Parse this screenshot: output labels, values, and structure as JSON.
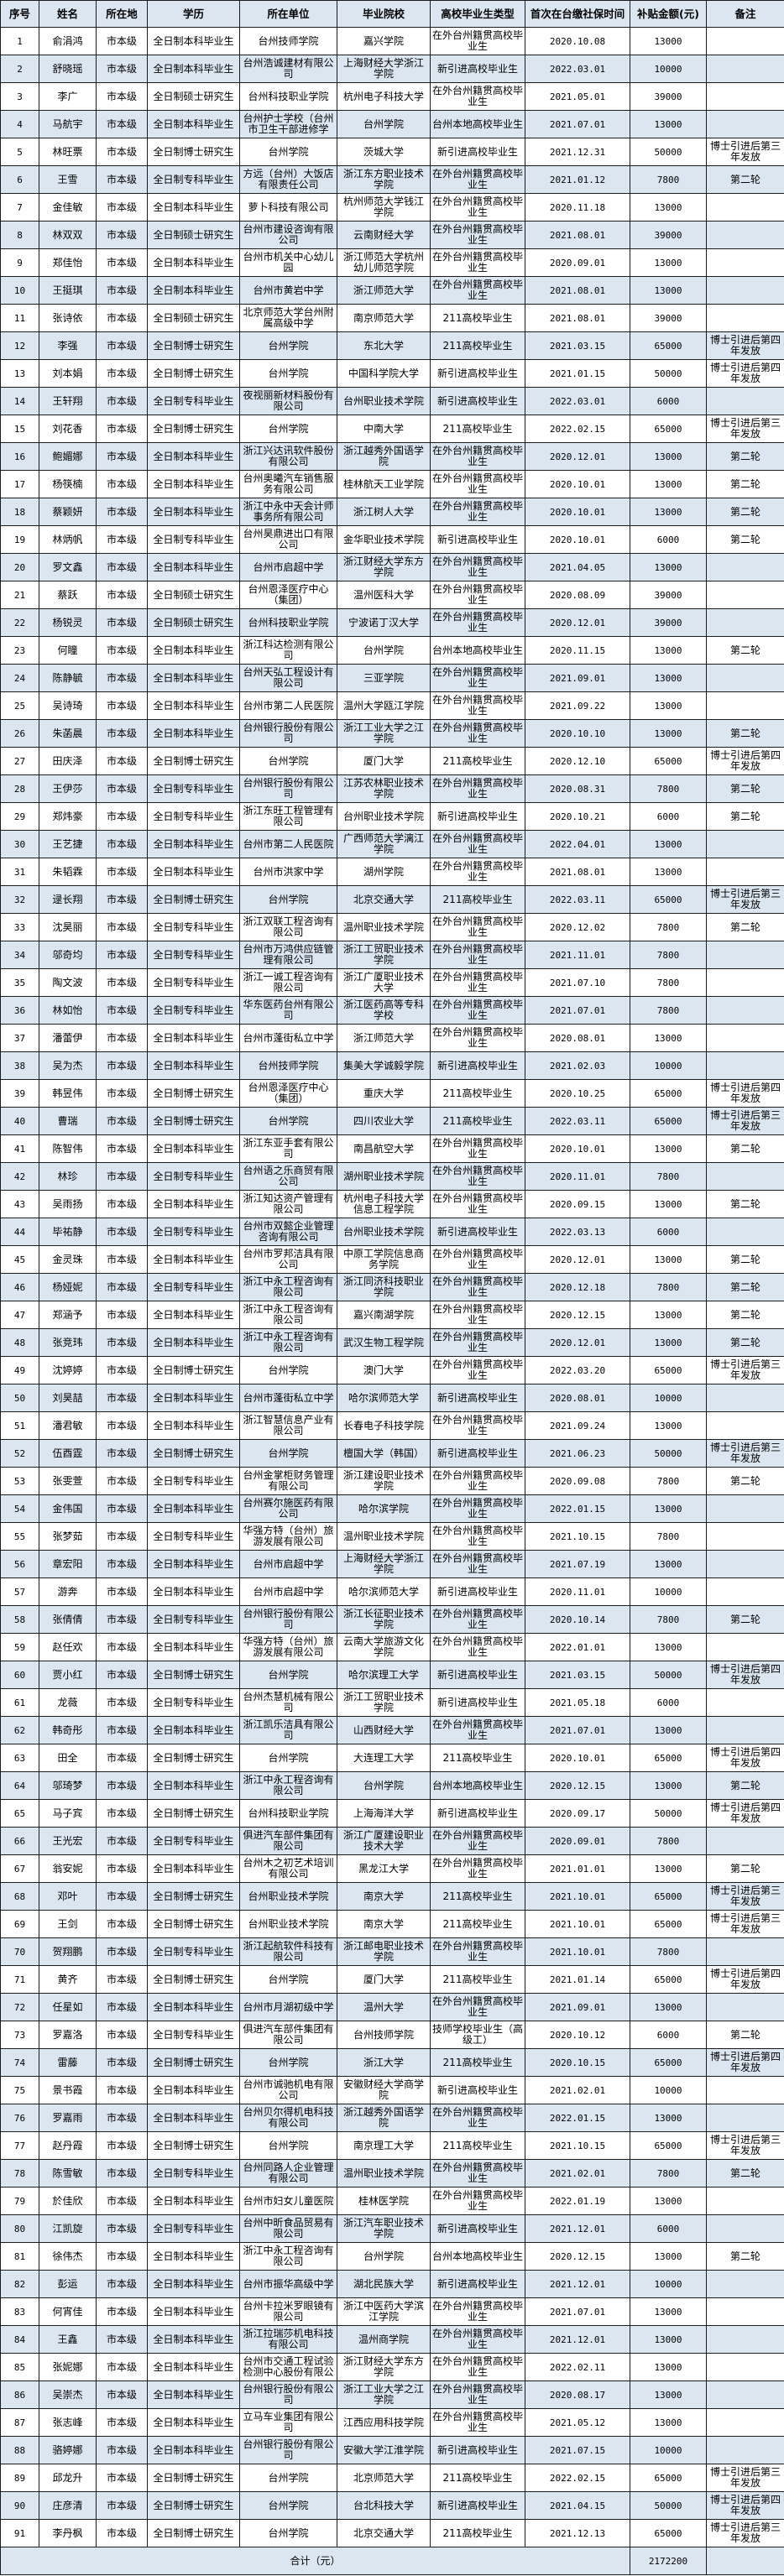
{
  "table": {
    "headers": [
      "序号",
      "姓名",
      "所在地",
      "学历",
      "所在单位",
      "毕业院校",
      "高校毕业生类型",
      "首次在台缴社保时间",
      "补贴金额(元)",
      "备注"
    ],
    "rows": [
      [
        "1",
        "俞涓鸿",
        "市本级",
        "全日制本科毕业生",
        "台州技师学院",
        "嘉兴学院",
        "在外台州籍贯高校毕业生",
        "2020.10.08",
        "13000",
        ""
      ],
      [
        "2",
        "舒晓瑶",
        "市本级",
        "全日制本科毕业生",
        "台州浩诚建材有限公司",
        "上海财经大学浙江学院",
        "新引进高校毕业生",
        "2022.03.01",
        "10000",
        ""
      ],
      [
        "3",
        "李广",
        "市本级",
        "全日制硕士研究生",
        "台州科技职业学院",
        "杭州电子科技大学",
        "在外台州籍贯高校毕业生",
        "2021.05.01",
        "39000",
        ""
      ],
      [
        "4",
        "马航宇",
        "市本级",
        "全日制本科毕业生",
        "台州护士学校（台州市卫生干部进修学",
        "台州学院",
        "台州本地高校毕业生",
        "2021.07.01",
        "13000",
        ""
      ],
      [
        "5",
        "林旺票",
        "市本级",
        "全日制博士研究生",
        "台州学院",
        "茨城大学",
        "新引进高校毕业生",
        "2021.12.31",
        "50000",
        "博士引进后第三年发放"
      ],
      [
        "6",
        "王雪",
        "市本级",
        "全日制专科毕业生",
        "方远（台州）大饭店有限责任公司",
        "浙江东方职业技术学院",
        "在外台州籍贯高校毕业生",
        "2021.01.12",
        "7800",
        "第二轮"
      ],
      [
        "7",
        "金佳敏",
        "市本级",
        "全日制本科毕业生",
        "萝卜科技有限公司",
        "杭州师范大学钱江学院",
        "在外台州籍贯高校毕业生",
        "2020.11.18",
        "13000",
        ""
      ],
      [
        "8",
        "林双双",
        "市本级",
        "全日制硕士研究生",
        "台州市建设咨询有限公司",
        "云南财经大学",
        "在外台州籍贯高校毕业生",
        "2021.08.01",
        "39000",
        ""
      ],
      [
        "9",
        "郑佳怡",
        "市本级",
        "全日制本科毕业生",
        "台州市机关中心幼儿园",
        "浙江师范大学杭州幼儿师范学院",
        "在外台州籍贯高校毕业生",
        "2020.09.01",
        "13000",
        ""
      ],
      [
        "10",
        "王挺琪",
        "市本级",
        "全日制本科毕业生",
        "台州市黄岩中学",
        "浙江师范大学",
        "在外台州籍贯高校毕业生",
        "2021.08.01",
        "13000",
        ""
      ],
      [
        "11",
        "张诗依",
        "市本级",
        "全日制硕士研究生",
        "北京师范大学台州附属高级中学",
        "南京师范大学",
        "211高校毕业生",
        "2021.08.01",
        "39000",
        ""
      ],
      [
        "12",
        "李强",
        "市本级",
        "全日制博士研究生",
        "台州学院",
        "东北大学",
        "211高校毕业生",
        "2021.03.15",
        "65000",
        "博士引进后第四年发放"
      ],
      [
        "13",
        "刘本娟",
        "市本级",
        "全日制博士研究生",
        "台州学院",
        "中国科学院大学",
        "新引进高校毕业生",
        "2021.01.15",
        "50000",
        "博士引进后第四年发放"
      ],
      [
        "14",
        "王轩翔",
        "市本级",
        "全日制专科毕业生",
        "夜视丽新材料股份有限公司",
        "台州职业技术学院",
        "新引进高校毕业生",
        "2022.03.01",
        "6000",
        ""
      ],
      [
        "15",
        "刘花香",
        "市本级",
        "全日制博士研究生",
        "台州学院",
        "中南大学",
        "211高校毕业生",
        "2022.02.15",
        "65000",
        "博士引进后第三年发放"
      ],
      [
        "16",
        "鲍媚娜",
        "市本级",
        "全日制本科毕业生",
        "浙江兴达讯软件股份有限公司",
        "浙江越秀外国语学院",
        "在外台州籍贯高校毕业生",
        "2020.12.01",
        "13000",
        "第二轮"
      ],
      [
        "17",
        "杨筷楠",
        "市本级",
        "全日制本科毕业生",
        "台州奥曦汽车销售服务有限公司",
        "桂林航天工业学院",
        "在外台州籍贯高校毕业生",
        "2020.10.01",
        "13000",
        "第二轮"
      ],
      [
        "18",
        "蔡颖妍",
        "市本级",
        "全日制本科毕业生",
        "浙江中永中天会计师事务所有限公司",
        "浙江树人大学",
        "在外台州籍贯高校毕业生",
        "2020.10.01",
        "13000",
        "第二轮"
      ],
      [
        "19",
        "林炳帆",
        "市本级",
        "全日制专科毕业生",
        "台州昊鼎进出口有限公司",
        "金华职业技术学院",
        "新引进高校毕业生",
        "2020.10.01",
        "6000",
        "第二轮"
      ],
      [
        "20",
        "罗文鑫",
        "市本级",
        "全日制本科毕业生",
        "台州市启超中学",
        "浙江财经大学东方学院",
        "在外台州籍贯高校毕业生",
        "2021.04.05",
        "13000",
        ""
      ],
      [
        "21",
        "蔡跃",
        "市本级",
        "全日制硕士研究生",
        "台州恩泽医疗中心（集团）",
        "温州医科大学",
        "在外台州籍贯高校毕业生",
        "2020.08.09",
        "39000",
        ""
      ],
      [
        "22",
        "杨锐灵",
        "市本级",
        "全日制硕士研究生",
        "台州科技职业学院",
        "宁波诺丁汉大学",
        "在外台州籍贯高校毕业生",
        "2020.12.01",
        "39000",
        ""
      ],
      [
        "23",
        "何瞳",
        "市本级",
        "全日制本科毕业生",
        "浙江科达检测有限公司",
        "台州学院",
        "台州本地高校毕业生",
        "2020.11.15",
        "13000",
        "第二轮"
      ],
      [
        "24",
        "陈静毓",
        "市本级",
        "全日制本科毕业生",
        "台州天弘工程设计有限公司",
        "三亚学院",
        "在外台州籍贯高校毕业生",
        "2021.09.01",
        "13000",
        ""
      ],
      [
        "25",
        "吴诗琦",
        "市本级",
        "全日制本科毕业生",
        "台州市第二人民医院",
        "温州大学瓯江学院",
        "在外台州籍贯高校毕业生",
        "2021.09.22",
        "13000",
        ""
      ],
      [
        "26",
        "朱菡晨",
        "市本级",
        "全日制本科毕业生",
        "台州银行股份有限公司",
        "浙江工业大学之江学院",
        "在外台州籍贯高校毕业生",
        "2020.10.10",
        "13000",
        "第二轮"
      ],
      [
        "27",
        "田庆泽",
        "市本级",
        "全日制博士研究生",
        "台州学院",
        "厦门大学",
        "211高校毕业生",
        "2020.12.10",
        "65000",
        "博士引进后第四年发放"
      ],
      [
        "28",
        "王伊莎",
        "市本级",
        "全日制专科毕业生",
        "台州银行股份有限公司",
        "江苏农林职业技术学院",
        "在外台州籍贯高校毕业生",
        "2020.08.31",
        "7800",
        "第二轮"
      ],
      [
        "29",
        "郑炜豪",
        "市本级",
        "全日制专科毕业生",
        "浙江东旺工程管理有限公司",
        "台州职业技术学院",
        "新引进高校毕业生",
        "2020.10.21",
        "6000",
        "第二轮"
      ],
      [
        "30",
        "王艺捷",
        "市本级",
        "全日制本科毕业生",
        "台州市第二人民医院",
        "广西师范大学漓江学院",
        "在外台州籍贯高校毕业生",
        "2022.04.01",
        "13000",
        ""
      ],
      [
        "31",
        "朱韬霖",
        "市本级",
        "全日制本科毕业生",
        "台州市洪家中学",
        "湖州学院",
        "在外台州籍贯高校毕业生",
        "2021.08.01",
        "13000",
        ""
      ],
      [
        "32",
        "逯长翔",
        "市本级",
        "全日制博士研究生",
        "台州学院",
        "北京交通大学",
        "211高校毕业生",
        "2022.03.11",
        "65000",
        "博士引进后第三年发放"
      ],
      [
        "33",
        "沈昊丽",
        "市本级",
        "全日制专科毕业生",
        "浙江双联工程咨询有限公司",
        "温州职业技术学院",
        "在外台州籍贯高校毕业生",
        "2020.12.02",
        "7800",
        "第二轮"
      ],
      [
        "34",
        "邬奇均",
        "市本级",
        "全日制专科毕业生",
        "台州市万鸿供应链管理有限公司",
        "浙江工贸职业技术学院",
        "在外台州籍贯高校毕业生",
        "2021.11.01",
        "7800",
        ""
      ],
      [
        "35",
        "陶文波",
        "市本级",
        "全日制专科毕业生",
        "浙江一诚工程咨询有限公司",
        "浙江广厦职业技术大学",
        "在外台州籍贯高校毕业生",
        "2021.07.10",
        "7800",
        ""
      ],
      [
        "36",
        "林如怡",
        "市本级",
        "全日制专科毕业生",
        "华东医药台州有限公司",
        "浙江医药高等专科学校",
        "在外台州籍贯高校毕业生",
        "2021.07.01",
        "7800",
        ""
      ],
      [
        "37",
        "潘蕾伊",
        "市本级",
        "全日制本科毕业生",
        "台州市蓬街私立中学",
        "浙江师范大学",
        "在外台州籍贯高校毕业生",
        "2020.08.01",
        "13000",
        ""
      ],
      [
        "38",
        "吴为杰",
        "市本级",
        "全日制本科毕业生",
        "台州技师学院",
        "集美大学诚毅学院",
        "新引进高校毕业生",
        "2021.02.03",
        "10000",
        ""
      ],
      [
        "39",
        "韩昱伟",
        "市本级",
        "全日制博士研究生",
        "台州恩泽医疗中心（集团）",
        "重庆大学",
        "211高校毕业生",
        "2020.10.25",
        "65000",
        "博士引进后第四年发放"
      ],
      [
        "40",
        "曹瑞",
        "市本级",
        "全日制博士研究生",
        "台州学院",
        "四川农业大学",
        "211高校毕业生",
        "2022.03.11",
        "65000",
        "博士引进后第三年发放"
      ],
      [
        "41",
        "陈智伟",
        "市本级",
        "全日制本科毕业生",
        "浙江东亚手套有限公司",
        "南昌航空大学",
        "在外台州籍贯高校毕业生",
        "2020.10.01",
        "13000",
        "第二轮"
      ],
      [
        "42",
        "林珍",
        "市本级",
        "全日制专科毕业生",
        "台州语之乐商贸有限公司",
        "湖州职业技术学院",
        "在外台州籍贯高校毕业生",
        "2020.11.01",
        "7800",
        ""
      ],
      [
        "43",
        "吴雨扬",
        "市本级",
        "全日制本科毕业生",
        "浙江知达资产管理有限公司",
        "杭州电子科技大学信息工程学院",
        "在外台州籍贯高校毕业生",
        "2020.09.15",
        "13000",
        "第二轮"
      ],
      [
        "44",
        "毕祐静",
        "市本级",
        "全日制专科毕业生",
        "台州市双懿企业管理咨询有限公司",
        "台州职业技术学院",
        "新引进高校毕业生",
        "2022.03.13",
        "6000",
        ""
      ],
      [
        "45",
        "金灵珠",
        "市本级",
        "全日制本科毕业生",
        "台州市罗邦洁具有限公司",
        "中原工学院信息商务学院",
        "在外台州籍贯高校毕业生",
        "2020.12.01",
        "13000",
        "第二轮"
      ],
      [
        "46",
        "杨娅妮",
        "市本级",
        "全日制专科毕业生",
        "浙江中永工程咨询有限公司",
        "浙江同济科技职业学院",
        "在外台州籍贯高校毕业生",
        "2020.12.18",
        "7800",
        "第二轮"
      ],
      [
        "47",
        "郑涵予",
        "市本级",
        "全日制本科毕业生",
        "浙江中永工程咨询有限公司",
        "嘉兴南湖学院",
        "在外台州籍贯高校毕业生",
        "2020.12.15",
        "13000",
        "第二轮"
      ],
      [
        "48",
        "张竞玮",
        "市本级",
        "全日制本科毕业生",
        "浙江中永工程咨询有限公司",
        "武汉生物工程学院",
        "在外台州籍贯高校毕业生",
        "2020.12.01",
        "13000",
        "第二轮"
      ],
      [
        "49",
        "沈婷婷",
        "市本级",
        "全日制博士研究生",
        "台州学院",
        "澳门大学",
        "在外台州籍贯高校毕业生",
        "2022.03.20",
        "65000",
        "博士引进后第三年发放"
      ],
      [
        "50",
        "刘昊喆",
        "市本级",
        "全日制本科毕业生",
        "台州市蓬街私立中学",
        "哈尔滨师范大学",
        "新引进高校毕业生",
        "2020.08.01",
        "10000",
        ""
      ],
      [
        "51",
        "潘君敏",
        "市本级",
        "全日制本科毕业生",
        "浙江智慧信息产业有限公司",
        "长春电子科技学院",
        "在外台州籍贯高校毕业生",
        "2021.09.24",
        "13000",
        ""
      ],
      [
        "52",
        "伍酉霆",
        "市本级",
        "全日制博士研究生",
        "台州学院",
        "檀国大学（韩国）",
        "新引进高校毕业生",
        "2021.06.23",
        "50000",
        "博士引进后第三年发放"
      ],
      [
        "53",
        "张雯萱",
        "市本级",
        "全日制专科毕业生",
        "台州金掌柜财务管理有限公司",
        "浙江建设职业技术学院",
        "在外台州籍贯高校毕业生",
        "2020.09.08",
        "7800",
        "第二轮"
      ],
      [
        "54",
        "金伟国",
        "市本级",
        "全日制本科毕业生",
        "台州赛尔施医药有限公司",
        "哈尔滨学院",
        "在外台州籍贯高校毕业生",
        "2022.01.15",
        "13000",
        ""
      ],
      [
        "55",
        "张梦茹",
        "市本级",
        "全日制专科毕业生",
        "华强方特（台州）旅游发展有限公司",
        "温州职业技术学院",
        "在外台州籍贯高校毕业生",
        "2021.10.15",
        "7800",
        ""
      ],
      [
        "56",
        "章宏阳",
        "市本级",
        "全日制本科毕业生",
        "台州市启超中学",
        "上海财经大学浙江学院",
        "在外台州籍贯高校毕业生",
        "2021.07.19",
        "13000",
        ""
      ],
      [
        "57",
        "游奔",
        "市本级",
        "全日制本科毕业生",
        "台州市启超中学",
        "哈尔滨师范大学",
        "新引进高校毕业生",
        "2020.11.01",
        "10000",
        ""
      ],
      [
        "58",
        "张倩倩",
        "市本级",
        "全日制专科毕业生",
        "台州银行股份有限公司",
        "浙江长征职业技术学院",
        "在外台州籍贯高校毕业生",
        "2020.10.14",
        "7800",
        "第二轮"
      ],
      [
        "59",
        "赵任欢",
        "市本级",
        "全日制本科毕业生",
        "华强方特（台州）旅游发展有限公司",
        "云南大学旅游文化学院",
        "在外台州籍贯高校毕业生",
        "2022.01.01",
        "13000",
        ""
      ],
      [
        "60",
        "贾小红",
        "市本级",
        "全日制博士研究生",
        "台州学院",
        "哈尔滨理工大学",
        "新引进高校毕业生",
        "2021.03.15",
        "50000",
        "博士引进后第四年发放"
      ],
      [
        "61",
        "龙薇",
        "市本级",
        "全日制专科毕业生",
        "台州杰慧机械有限公司",
        "浙江工贸职业技术学院",
        "新引进高校毕业生",
        "2021.05.18",
        "6000",
        ""
      ],
      [
        "62",
        "韩奇彤",
        "市本级",
        "全日制本科毕业生",
        "浙江凯乐洁具有限公司",
        "山西财经大学",
        "在外台州籍贯高校毕业生",
        "2021.07.01",
        "13000",
        ""
      ],
      [
        "63",
        "田全",
        "市本级",
        "全日制博士研究生",
        "台州学院",
        "大连理工大学",
        "211高校毕业生",
        "2020.10.01",
        "65000",
        "博士引进后第四年发放"
      ],
      [
        "64",
        "邬琦梦",
        "市本级",
        "全日制本科毕业生",
        "浙江中永工程咨询有限公司",
        "台州学院",
        "台州本地高校毕业生",
        "2020.12.15",
        "13000",
        "第二轮"
      ],
      [
        "65",
        "马子宾",
        "市本级",
        "全日制博士研究生",
        "台州科技职业学院",
        "上海海洋大学",
        "新引进高校毕业生",
        "2020.09.17",
        "50000",
        "博士引进后第四年发放"
      ],
      [
        "66",
        "王光宏",
        "市本级",
        "全日制专科毕业生",
        "俱进汽车部件集团有限公司",
        "浙江广厦建设职业技术大学",
        "在外台州籍贯高校毕业生",
        "2020.09.01",
        "7800",
        ""
      ],
      [
        "67",
        "翁安妮",
        "市本级",
        "全日制本科毕业生",
        "台州木之初艺术培训有限公司",
        "黑龙江大学",
        "在外台州籍贯高校毕业生",
        "2021.01.01",
        "13000",
        "第二轮"
      ],
      [
        "68",
        "邓叶",
        "市本级",
        "全日制博士研究生",
        "台州职业技术学院",
        "南京大学",
        "211高校毕业生",
        "2021.10.01",
        "65000",
        "博士引进后第三年发放"
      ],
      [
        "69",
        "王剑",
        "市本级",
        "全日制博士研究生",
        "台州职业技术学院",
        "南京大学",
        "211高校毕业生",
        "2021.10.01",
        "65000",
        "博士引进后第三年发放"
      ],
      [
        "70",
        "贺翔鹏",
        "市本级",
        "全日制专科毕业生",
        "浙江起航软件科技有限公司",
        "浙江邮电职业技术学院",
        "在外台州籍贯高校毕业生",
        "2021.10.01",
        "7800",
        ""
      ],
      [
        "71",
        "黄齐",
        "市本级",
        "全日制博士研究生",
        "台州学院",
        "厦门大学",
        "211高校毕业生",
        "2021.01.14",
        "65000",
        "博士引进后第四年发放"
      ],
      [
        "72",
        "任星如",
        "市本级",
        "全日制本科毕业生",
        "台州市月湖初级中学",
        "温州大学",
        "在外台州籍贯高校毕业生",
        "2021.09.01",
        "13000",
        ""
      ],
      [
        "73",
        "罗嘉洛",
        "市本级",
        "全日制专科毕业生",
        "俱进汽车部件集团有限公司",
        "台州技师学院",
        "技师学校毕业生（高级工）",
        "2020.10.12",
        "6000",
        "第二轮"
      ],
      [
        "74",
        "雷藤",
        "市本级",
        "全日制博士研究生",
        "台州学院",
        "浙江大学",
        "211高校毕业生",
        "2020.10.15",
        "65000",
        "博士引进后第四年发放"
      ],
      [
        "75",
        "景书霞",
        "市本级",
        "全日制本科毕业生",
        "台州市诚驰机电有限公司",
        "安徽财经大学商学院",
        "新引进高校毕业生",
        "2021.02.01",
        "10000",
        ""
      ],
      [
        "76",
        "罗嘉雨",
        "市本级",
        "全日制本科毕业生",
        "台州贝尔得机电科技有限公司",
        "浙江越秀外国语学院",
        "在外台州籍贯高校毕业生",
        "2022.01.15",
        "13000",
        ""
      ],
      [
        "77",
        "赵丹霞",
        "市本级",
        "全日制博士研究生",
        "台州学院",
        "南京理工大学",
        "211高校毕业生",
        "2021.10.15",
        "65000",
        "博士引进后第三年发放"
      ],
      [
        "78",
        "陈雪敏",
        "市本级",
        "全日制专科毕业生",
        "台州同路人企业管理有限公司",
        "温州职业技术学院",
        "在外台州籍贯高校毕业生",
        "2021.02.01",
        "7800",
        "第二轮"
      ],
      [
        "79",
        "於佳欣",
        "市本级",
        "全日制本科毕业生",
        "台州市妇女儿童医院",
        "桂林医学院",
        "在外台州籍贯高校毕业生",
        "2022.01.19",
        "13000",
        ""
      ],
      [
        "80",
        "江凯旋",
        "市本级",
        "全日制专科毕业生",
        "台州中昕食品贸易有限公司",
        "浙江汽车职业技术学院",
        "新引进高校毕业生",
        "2021.12.01",
        "6000",
        ""
      ],
      [
        "81",
        "徐伟杰",
        "市本级",
        "全日制本科毕业生",
        "浙江中永工程咨询有限公司",
        "台州学院",
        "台州本地高校毕业生",
        "2020.12.15",
        "13000",
        "第二轮"
      ],
      [
        "82",
        "彭运",
        "市本级",
        "全日制本科毕业生",
        "台州市振华高级中学",
        "湖北民族大学",
        "新引进高校毕业生",
        "2021.12.01",
        "10000",
        ""
      ],
      [
        "83",
        "何宵佳",
        "市本级",
        "全日制本科毕业生",
        "台州卡拉米罗眼镜有限公司",
        "浙江中医药大学滨江学院",
        "在外台州籍贯高校毕业生",
        "2021.07.01",
        "13000",
        ""
      ],
      [
        "84",
        "王鑫",
        "市本级",
        "全日制本科毕业生",
        "浙江拉瑞莎机电科技有限公司",
        "温州商学院",
        "在外台州籍贯高校毕业生",
        "2021.12.01",
        "13000",
        ""
      ],
      [
        "85",
        "张妮娜",
        "市本级",
        "全日制本科毕业生",
        "台州市交通工程试验检测中心股份有限公",
        "浙江财经大学东方学院",
        "在外台州籍贯高校毕业生",
        "2022.02.11",
        "13000",
        ""
      ],
      [
        "86",
        "吴崇杰",
        "市本级",
        "全日制本科毕业生",
        "台州银行股份有限公司",
        "浙江工业大学之江学院",
        "在外台州籍贯高校毕业生",
        "2020.08.17",
        "13000",
        ""
      ],
      [
        "87",
        "张志峰",
        "市本级",
        "全日制本科毕业生",
        "立马车业集团有限公司",
        "江西应用科技学院",
        "在外台州籍贯高校毕业生",
        "2021.05.12",
        "13000",
        ""
      ],
      [
        "88",
        "骆婷娜",
        "市本级",
        "全日制本科毕业生",
        "台州银行股份有限公司",
        "安徽大学江淮学院",
        "新引进高校毕业生",
        "2021.07.15",
        "10000",
        ""
      ],
      [
        "89",
        "邱龙升",
        "市本级",
        "全日制博士研究生",
        "台州学院",
        "北京师范大学",
        "211高校毕业生",
        "2022.02.15",
        "65000",
        "博士引进后第三年发放"
      ],
      [
        "90",
        "庄彦清",
        "市本级",
        "全日制博士研究生",
        "台州学院",
        "台北科技大学",
        "新引进高校毕业生",
        "2021.04.15",
        "50000",
        "博士引进后第四年发放"
      ],
      [
        "91",
        "李丹枫",
        "市本级",
        "全日制博士研究生",
        "台州学院",
        "北京交通大学",
        "211高校毕业生",
        "2021.12.13",
        "65000",
        "博士引进后第三年发放"
      ]
    ],
    "total": {
      "label": "合计（元）",
      "amount": "2172200"
    },
    "colors": {
      "band": "#dce6f1",
      "border": "#1a1a1a"
    }
  }
}
